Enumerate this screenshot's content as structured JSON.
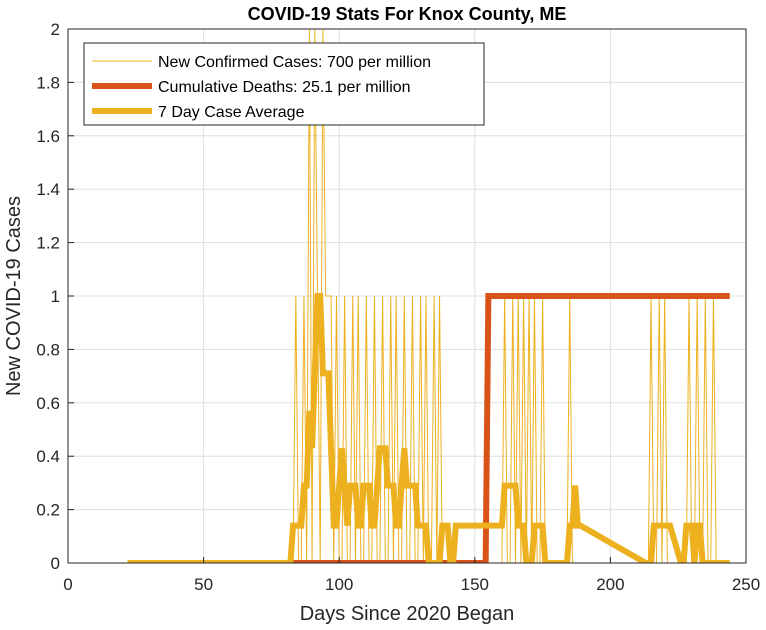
{
  "chart_data": {
    "type": "line",
    "title": "COVID-19 Stats For Knox County, ME",
    "xlabel": "Days Since 2020 Began",
    "ylabel": "New COVID-19 Cases",
    "xlim": [
      0,
      250
    ],
    "ylim": [
      0,
      2
    ],
    "xticks": [
      "0",
      "50",
      "100",
      "150",
      "200",
      "250"
    ],
    "yticks": [
      "0",
      "0.2",
      "0.4",
      "0.6",
      "0.8",
      "1",
      "1.2",
      "1.4",
      "1.6",
      "1.8",
      "2"
    ],
    "grid": true,
    "legend_position": "top-left",
    "series": [
      {
        "name": "New Confirmed Cases: 700 per million",
        "color": "#EDB120",
        "x": [
          22,
          83,
          84,
          85,
          86,
          87,
          88,
          89,
          90,
          91,
          92,
          93,
          94,
          95,
          96,
          97,
          98,
          99,
          100,
          101,
          102,
          103,
          104,
          105,
          106,
          107,
          108,
          109,
          110,
          111,
          112,
          113,
          114,
          115,
          116,
          117,
          118,
          119,
          120,
          121,
          122,
          123,
          124,
          125,
          126,
          127,
          128,
          129,
          130,
          131,
          132,
          133,
          134,
          135,
          136,
          137,
          138,
          160,
          161,
          162,
          163,
          164,
          165,
          166,
          167,
          168,
          169,
          170,
          171,
          172,
          173,
          174,
          175,
          176,
          184,
          185,
          186,
          187,
          188,
          214,
          215,
          216,
          217,
          218,
          219,
          220,
          221,
          222,
          228,
          229,
          230,
          231,
          232,
          233,
          234,
          235,
          236,
          237,
          238,
          239,
          240,
          244
        ],
        "values": [
          0,
          0,
          1,
          0,
          0,
          1,
          0,
          2,
          0,
          2,
          1,
          0,
          2,
          1,
          1,
          1,
          0,
          1,
          0,
          0,
          1,
          0,
          0,
          1,
          0,
          1,
          0,
          0,
          1,
          0,
          0,
          1,
          0,
          0,
          1,
          0,
          0,
          1,
          0,
          1,
          0,
          0,
          1,
          0,
          0,
          1,
          0,
          0,
          1,
          0,
          1,
          0,
          0,
          1,
          0,
          1,
          0,
          0,
          1,
          0,
          0,
          1,
          0,
          1,
          0,
          1,
          0,
          1,
          0,
          1,
          0,
          0,
          1,
          0,
          0,
          1,
          0,
          0,
          0,
          0,
          1,
          0,
          0,
          1,
          0,
          1,
          0,
          0,
          0,
          1,
          0,
          0,
          1,
          0,
          0,
          1,
          0,
          0,
          1,
          0,
          0,
          0
        ]
      },
      {
        "name": "Cumulative Deaths: 25.1 per million",
        "color": "#D95319",
        "x": [
          22,
          154,
          155,
          244
        ],
        "values": [
          0,
          0,
          1,
          1
        ]
      },
      {
        "name": "7 Day Case Average",
        "color": "#EDB120",
        "x": [
          22,
          82,
          83,
          86,
          87,
          88,
          89,
          90,
          91,
          92,
          93,
          94,
          95,
          96,
          97,
          98,
          99,
          100,
          101,
          102,
          103,
          104,
          105,
          106,
          107,
          108,
          109,
          110,
          111,
          112,
          113,
          114,
          115,
          116,
          117,
          118,
          119,
          120,
          121,
          122,
          123,
          124,
          125,
          126,
          127,
          128,
          129,
          130,
          131,
          132,
          133,
          134,
          135,
          136,
          137,
          138,
          140,
          141,
          142,
          143,
          160,
          161,
          162,
          163,
          164,
          165,
          166,
          167,
          168,
          169,
          170,
          171,
          172,
          173,
          174,
          175,
          176,
          177,
          183,
          184,
          185,
          186,
          187,
          188,
          189,
          213,
          214,
          215,
          216,
          217,
          218,
          219,
          220,
          221,
          222,
          226,
          227,
          228,
          229,
          230,
          231,
          232,
          233,
          234,
          235,
          236,
          237,
          238,
          239,
          240,
          241,
          242,
          243,
          244
        ],
        "values": [
          0,
          0,
          0.14,
          0.14,
          0.29,
          0.29,
          0.57,
          0.43,
          0.71,
          1,
          1,
          0.71,
          0.71,
          0.71,
          0.43,
          0.14,
          0.14,
          0.29,
          0.43,
          0.29,
          0.14,
          0.29,
          0.29,
          0.29,
          0.14,
          0.14,
          0.29,
          0.29,
          0.29,
          0.14,
          0.14,
          0.29,
          0.43,
          0.43,
          0.43,
          0.29,
          0.29,
          0.29,
          0.14,
          0.14,
          0.29,
          0.43,
          0.29,
          0.29,
          0.29,
          0.29,
          0.14,
          0.14,
          0.14,
          0.14,
          0,
          0,
          0,
          0,
          0,
          0.14,
          0.14,
          0,
          0,
          0.14,
          0.14,
          0.29,
          0.29,
          0.29,
          0.29,
          0.29,
          0.14,
          0.14,
          0.14,
          0,
          0,
          0,
          0.14,
          0.14,
          0.14,
          0.14,
          0,
          0,
          0,
          0,
          0.14,
          0.14,
          0.29,
          0.14,
          0.14,
          0,
          0,
          0,
          0.14,
          0.14,
          0.14,
          0.14,
          0.14,
          0.14,
          0.14,
          0,
          0,
          0.14,
          0.14,
          0.14,
          0,
          0.14,
          0.14,
          0,
          0,
          0,
          0,
          0,
          0,
          0,
          0,
          0,
          0,
          0
        ]
      }
    ]
  }
}
